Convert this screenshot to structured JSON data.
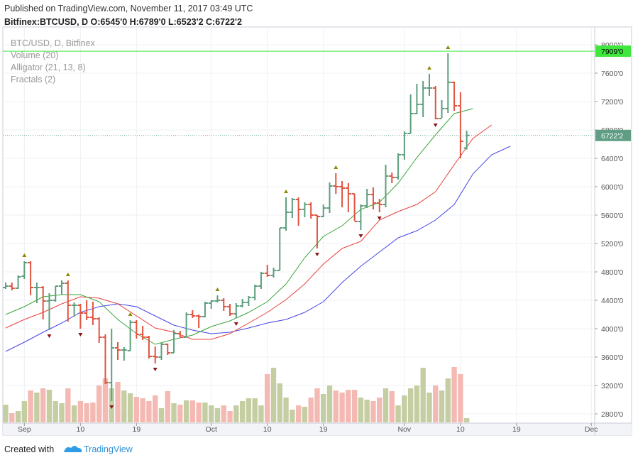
{
  "header": {
    "published": "Published on TradingView.com, November 11, 2017 03:49 UTC",
    "symbol": "Bitfinex:BTCUSD, D  O:6545'0 H:6789'0 L:6523'2 C:6722'2"
  },
  "footer": {
    "created": "Created with",
    "brand": "TradingView"
  },
  "chart_data": {
    "type": "ohlc",
    "legend": [
      "BTC/USD, D, Bitfinex",
      "Volume (20)",
      "Alligator (21, 13, 8)",
      "Fractals (2)"
    ],
    "up_color": "#5d9e7e",
    "down_color": "#e0533f",
    "x": [
      "2017-08-29",
      "2017-08-30",
      "2017-08-31",
      "2017-09-01",
      "2017-09-02",
      "2017-09-03",
      "2017-09-04",
      "2017-09-05",
      "2017-09-06",
      "2017-09-07",
      "2017-09-08",
      "2017-09-09",
      "2017-09-10",
      "2017-09-11",
      "2017-09-12",
      "2017-09-13",
      "2017-09-14",
      "2017-09-15",
      "2017-09-16",
      "2017-09-17",
      "2017-09-18",
      "2017-09-19",
      "2017-09-20",
      "2017-09-21",
      "2017-09-22",
      "2017-09-23",
      "2017-09-24",
      "2017-09-25",
      "2017-09-26",
      "2017-09-27",
      "2017-09-28",
      "2017-09-29",
      "2017-09-30",
      "2017-10-01",
      "2017-10-02",
      "2017-10-03",
      "2017-10-04",
      "2017-10-05",
      "2017-10-06",
      "2017-10-07",
      "2017-10-08",
      "2017-10-09",
      "2017-10-10",
      "2017-10-11",
      "2017-10-12",
      "2017-10-13",
      "2017-10-14",
      "2017-10-15",
      "2017-10-16",
      "2017-10-17",
      "2017-10-18",
      "2017-10-19",
      "2017-10-20",
      "2017-10-21",
      "2017-10-22",
      "2017-10-23",
      "2017-10-24",
      "2017-10-25",
      "2017-10-26",
      "2017-10-27",
      "2017-10-28",
      "2017-10-29",
      "2017-10-30",
      "2017-10-31",
      "2017-11-01",
      "2017-11-02",
      "2017-11-03",
      "2017-11-04",
      "2017-11-05",
      "2017-11-06",
      "2017-11-07",
      "2017-11-08",
      "2017-11-09",
      "2017-11-10",
      "2017-11-11"
    ],
    "open": [
      4580,
      4600,
      4570,
      4740,
      4930,
      4580,
      4580,
      4390,
      4400,
      4600,
      4640,
      4330,
      4330,
      4220,
      4160,
      4140,
      3880,
      3240,
      3730,
      3700,
      3690,
      4090,
      3920,
      3880,
      3610,
      3600,
      3780,
      3660,
      3930,
      3880,
      4200,
      4180,
      4170,
      4360,
      4390,
      4400,
      4310,
      4210,
      4320,
      4370,
      4440,
      4600,
      4780,
      4750,
      4820,
      5420,
      5640,
      5820,
      5680,
      5750,
      5600,
      5580,
      5700,
      6010,
      6000,
      5980,
      5900,
      5510,
      5730,
      5890,
      5770,
      5750,
      6150,
      6130,
      6450,
      6750,
      7030,
      7160,
      7390,
      7390,
      6960,
      7100,
      7470,
      7140,
      6545
    ],
    "high": [
      4650,
      4650,
      4750,
      4950,
      4950,
      4650,
      4600,
      4500,
      4600,
      4680,
      4680,
      4370,
      4350,
      4400,
      4380,
      4160,
      3920,
      4000,
      3810,
      3740,
      4120,
      4120,
      4040,
      3900,
      3750,
      3800,
      3790,
      3980,
      3970,
      4230,
      4260,
      4200,
      4380,
      4400,
      4470,
      4430,
      4350,
      4360,
      4420,
      4460,
      4620,
      4800,
      4900,
      4860,
      5420,
      5850,
      5840,
      5850,
      5780,
      5780,
      5600,
      5750,
      6060,
      6190,
      6080,
      6050,
      5900,
      5750,
      5970,
      5990,
      5830,
      6310,
      6200,
      6470,
      6780,
      7300,
      7450,
      7490,
      7590,
      7420,
      7220,
      7880,
      7480,
      7330,
      6789
    ],
    "low": [
      4560,
      4540,
      4560,
      4700,
      4470,
      4360,
      4130,
      3980,
      4380,
      4480,
      4100,
      4170,
      4000,
      4120,
      4050,
      3800,
      3220,
      2980,
      3560,
      3550,
      3690,
      3860,
      3840,
      3580,
      3510,
      3560,
      3630,
      3660,
      3880,
      3880,
      4150,
      4010,
      4160,
      4280,
      4370,
      4250,
      4180,
      4150,
      4300,
      4320,
      4400,
      4560,
      4730,
      4720,
      4820,
      5380,
      5560,
      5450,
      5570,
      5550,
      5130,
      5570,
      5630,
      5900,
      5710,
      5640,
      5520,
      5390,
      5700,
      5680,
      5640,
      5710,
      6050,
      6100,
      6380,
      6750,
      7020,
      6980,
      7280,
      6950,
      6970,
      7040,
      7070,
      6400,
      6523.2
    ],
    "close": [
      4600,
      4570,
      4730,
      4930,
      4580,
      4580,
      4390,
      4400,
      4600,
      4640,
      4330,
      4330,
      4220,
      4160,
      4140,
      3880,
      3240,
      3730,
      3700,
      3700,
      4090,
      3920,
      3880,
      3610,
      3600,
      3780,
      3660,
      3930,
      3880,
      4200,
      4180,
      4170,
      4360,
      4390,
      4400,
      4310,
      4210,
      4320,
      4370,
      4440,
      4600,
      4780,
      4750,
      4820,
      5420,
      5640,
      5820,
      5680,
      5750,
      5600,
      5580,
      5700,
      6010,
      6000,
      5980,
      5900,
      5510,
      5730,
      5890,
      5770,
      5750,
      6150,
      6130,
      6450,
      6750,
      7030,
      7160,
      7390,
      7390,
      6960,
      7100,
      7470,
      7140,
      6640,
      6722.2
    ],
    "volume": {
      "up_color": "#c5cda3",
      "down_color": "#f4b9b3",
      "values": [
        25,
        13,
        16,
        30,
        45,
        42,
        48,
        46,
        30,
        27,
        48,
        24,
        30,
        27,
        28,
        52,
        62,
        48,
        57,
        45,
        41,
        36,
        34,
        30,
        38,
        20,
        44,
        27,
        25,
        31,
        31,
        28,
        28,
        24,
        20,
        24,
        16,
        24,
        30,
        34,
        34,
        24,
        68,
        77,
        55,
        35,
        18,
        24,
        22,
        35,
        48,
        40,
        52,
        45,
        42,
        46,
        46,
        35,
        32,
        30,
        35,
        48,
        44,
        24,
        38,
        48,
        52,
        77,
        42,
        52,
        45,
        62,
        78,
        68,
        6
      ]
    },
    "alligator": {
      "x": [
        "2017-08-29",
        "2017-09-01",
        "2017-09-04",
        "2017-09-07",
        "2017-09-10",
        "2017-09-13",
        "2017-09-16",
        "2017-09-19",
        "2017-09-22",
        "2017-09-25",
        "2017-09-28",
        "2017-10-01",
        "2017-10-04",
        "2017-10-07",
        "2017-10-10",
        "2017-10-13",
        "2017-10-16",
        "2017-10-19",
        "2017-10-22",
        "2017-10-25",
        "2017-10-28",
        "2017-10-31",
        "2017-11-03",
        "2017-11-06",
        "2017-11-09",
        "2017-11-12",
        "2017-11-15",
        "2017-11-18"
      ],
      "jaw": {
        "color": "#4545e6",
        "values": [
          3680,
          3810,
          3950,
          4080,
          4230,
          4310,
          4350,
          4310,
          4180,
          4050,
          3980,
          3930,
          3950,
          4010,
          4080,
          4130,
          4230,
          4380,
          4650,
          4880,
          5080,
          5280,
          5380,
          5530,
          5750,
          6180,
          6450,
          6570
        ]
      },
      "teeth": {
        "color": "#e8403a",
        "values": [
          4010,
          4130,
          4230,
          4350,
          4450,
          4430,
          4350,
          4180,
          4010,
          3950,
          3850,
          3850,
          3930,
          4080,
          4230,
          4410,
          4630,
          4910,
          5130,
          5230,
          5530,
          5650,
          5750,
          5930,
          6310,
          6680,
          6870,
          null
        ]
      },
      "lips": {
        "color": "#3aa53a",
        "values": [
          4200,
          4310,
          4450,
          4480,
          4480,
          4380,
          4130,
          3930,
          3780,
          3850,
          3910,
          4030,
          4110,
          4230,
          4380,
          4630,
          5000,
          5300,
          5450,
          5680,
          5780,
          6050,
          6410,
          6730,
          7030,
          7100,
          null,
          null
        ]
      }
    },
    "fractals": {
      "up_color": "#8b8a00",
      "down_color": "#8b1414",
      "up": [
        "2017-09-01",
        "2017-09-08",
        "2017-09-18",
        "2017-10-02",
        "2017-10-13",
        "2017-10-21",
        "2017-11-05",
        "2017-11-08"
      ],
      "down": [
        "2017-09-05",
        "2017-09-10",
        "2017-09-15",
        "2017-09-22",
        "2017-10-05",
        "2017-10-18",
        "2017-10-25",
        "2017-10-28",
        "2017-11-06"
      ]
    },
    "hline": {
      "value": 7909,
      "label": "7909'0",
      "color": "#3ee63e"
    },
    "last_price": {
      "value": 6722.2,
      "label": "6722'2",
      "color": "#5f9e85"
    },
    "xlim": [
      "2017-08-29",
      "2017-12-02"
    ],
    "xticks": [
      {
        "value": "2017-09-01",
        "label": "Sep"
      },
      {
        "value": "2017-09-10",
        "label": "10"
      },
      {
        "value": "2017-09-19",
        "label": "19"
      },
      {
        "value": "2017-10-01",
        "label": "Oct"
      },
      {
        "value": "2017-10-10",
        "label": "10"
      },
      {
        "value": "2017-10-19",
        "label": "19"
      },
      {
        "value": "2017-11-01",
        "label": "Nov"
      },
      {
        "value": "2017-11-10",
        "label": "10"
      },
      {
        "value": "2017-11-19",
        "label": "19"
      },
      {
        "value": "2017-12-01",
        "label": "Dec"
      }
    ],
    "ylim": [
      2680,
      8250
    ],
    "yticks": [
      {
        "value": 2800,
        "label": "2800'0"
      },
      {
        "value": 3200,
        "label": "3200'0"
      },
      {
        "value": 3600,
        "label": "3600'0"
      },
      {
        "value": 4000,
        "label": "4000'0"
      },
      {
        "value": 4400,
        "label": "4400'0"
      },
      {
        "value": 4800,
        "label": "4800'0"
      },
      {
        "value": 5200,
        "label": "5200'0"
      },
      {
        "value": 5600,
        "label": "5600'0"
      },
      {
        "value": 6000,
        "label": "6000'0"
      },
      {
        "value": 6400,
        "label": "6400'0"
      },
      {
        "value": 6800,
        "label": "6800'0"
      },
      {
        "value": 7200,
        "label": "7200'0"
      },
      {
        "value": 7600,
        "label": "7600'0"
      },
      {
        "value": 8000,
        "label": "8000'0"
      }
    ],
    "grid": true
  }
}
